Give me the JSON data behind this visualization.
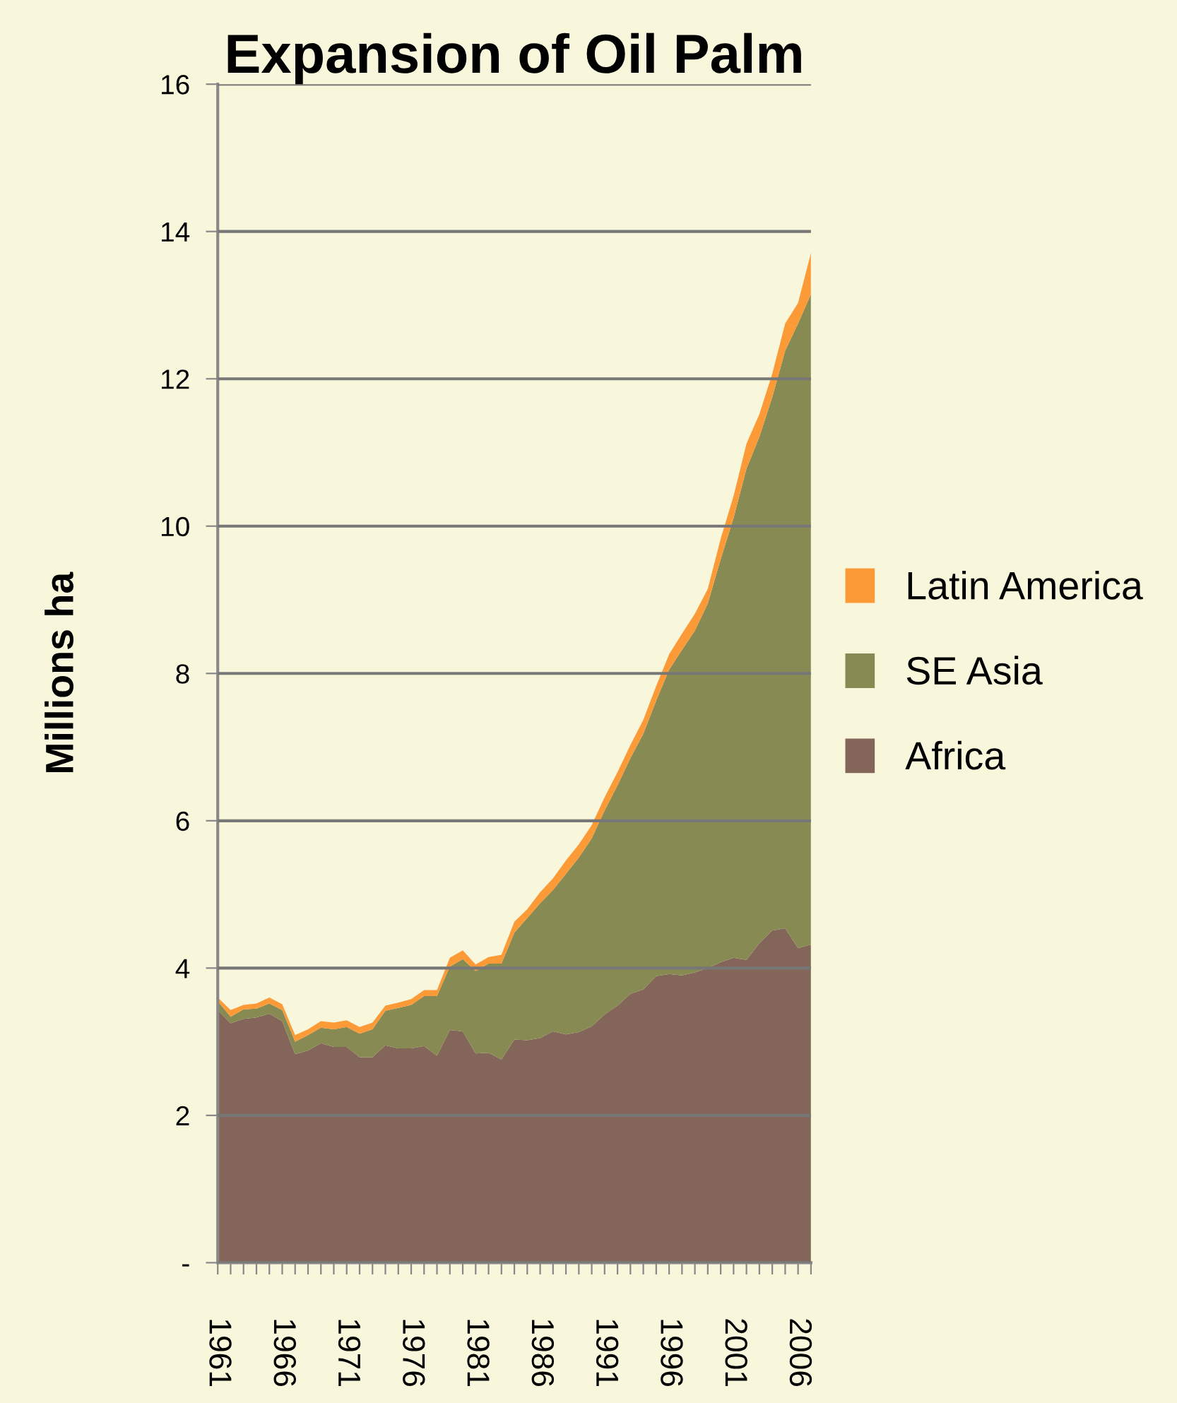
{
  "chart_data": {
    "type": "area",
    "stacked": true,
    "title": "Expansion of Oil Palm",
    "ylabel": "Millions ha",
    "categories": [
      "1961",
      null,
      null,
      null,
      null,
      "1966",
      null,
      null,
      null,
      null,
      "1971",
      null,
      null,
      null,
      null,
      "1976",
      null,
      null,
      null,
      null,
      "1981",
      null,
      null,
      null,
      null,
      "1986",
      null,
      null,
      null,
      null,
      "1991",
      null,
      null,
      null,
      null,
      "1996",
      null,
      null,
      null,
      null,
      "2001",
      null,
      null,
      null,
      null,
      "2006",
      null
    ],
    "series": [
      {
        "name": "Africa",
        "color": "#836659",
        "values": [
          3.43,
          3.25,
          3.31,
          3.33,
          3.38,
          3.28,
          2.83,
          2.88,
          2.98,
          2.93,
          2.93,
          2.79,
          2.79,
          2.95,
          2.91,
          2.91,
          2.94,
          2.81,
          3.16,
          3.14,
          2.84,
          2.85,
          2.76,
          3.03,
          3.02,
          3.05,
          3.14,
          3.1,
          3.13,
          3.21,
          3.37,
          3.49,
          3.65,
          3.71,
          3.89,
          3.92,
          3.9,
          3.94,
          4.0,
          4.08,
          4.14,
          4.11,
          4.34,
          4.51,
          4.54,
          4.27,
          4.32
        ]
      },
      {
        "name": "SE Asia",
        "color": "#878a52",
        "values": [
          0.12,
          0.09,
          0.13,
          0.12,
          0.14,
          0.15,
          0.17,
          0.21,
          0.21,
          0.24,
          0.27,
          0.32,
          0.38,
          0.47,
          0.55,
          0.59,
          0.68,
          0.81,
          0.86,
          0.98,
          1.12,
          1.21,
          1.3,
          1.45,
          1.66,
          1.83,
          1.92,
          2.18,
          2.37,
          2.55,
          2.77,
          2.99,
          3.2,
          3.47,
          3.74,
          4.13,
          4.42,
          4.64,
          4.95,
          5.47,
          5.97,
          6.67,
          6.87,
          7.24,
          7.84,
          8.48,
          8.83
        ]
      },
      {
        "name": "Latin America",
        "color": "#fb9a37",
        "values": [
          0.05,
          0.09,
          0.06,
          0.07,
          0.08,
          0.08,
          0.09,
          0.08,
          0.09,
          0.09,
          0.09,
          0.09,
          0.09,
          0.07,
          0.07,
          0.08,
          0.08,
          0.08,
          0.12,
          0.12,
          0.09,
          0.09,
          0.12,
          0.15,
          0.12,
          0.15,
          0.16,
          0.18,
          0.18,
          0.18,
          0.18,
          0.18,
          0.18,
          0.19,
          0.2,
          0.21,
          0.22,
          0.23,
          0.2,
          0.28,
          0.3,
          0.34,
          0.31,
          0.32,
          0.37,
          0.28,
          0.56
        ]
      }
    ],
    "ylim": [
      0,
      16
    ],
    "yticks": [
      {
        "value": 0,
        "label": "-"
      },
      2,
      4,
      6,
      8,
      10,
      12,
      14,
      16
    ],
    "grid": "y",
    "legend": "right"
  }
}
